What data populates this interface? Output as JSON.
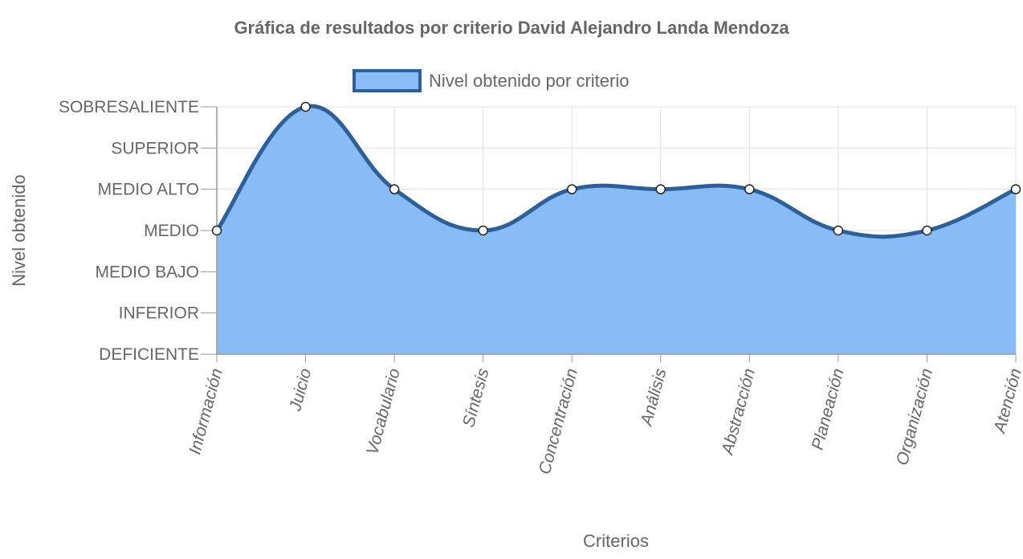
{
  "chart_data": {
    "type": "area",
    "title": "Gráfica de resultados por criterio David Alejandro Landa Mendoza",
    "xlabel": "Criterios",
    "ylabel": "Nivel obtenido",
    "y_levels": [
      "DEFICIENTE",
      "INFERIOR",
      "MEDIO BAJO",
      "MEDIO",
      "MEDIO ALTO",
      "SUPERIOR",
      "SOBRESALIENTE"
    ],
    "categories": [
      "Información",
      "Juicio",
      "Vocabulario",
      "Síntesis",
      "Concentración",
      "Análisis",
      "Abstracción",
      "Planeación",
      "Organización",
      "Atención"
    ],
    "series": [
      {
        "name": "Nivel obtenido por criterio",
        "values": [
          3,
          6,
          4,
          3,
          4,
          4,
          4,
          3,
          3,
          4
        ]
      }
    ],
    "ylim": [
      0,
      6
    ],
    "grid": true,
    "legend_position": "top",
    "colors": {
      "fill": "#89bbf6",
      "line": "#2d5f99",
      "grid": "#e0e0e0",
      "axis": "#999999",
      "text": "#666666"
    }
  }
}
